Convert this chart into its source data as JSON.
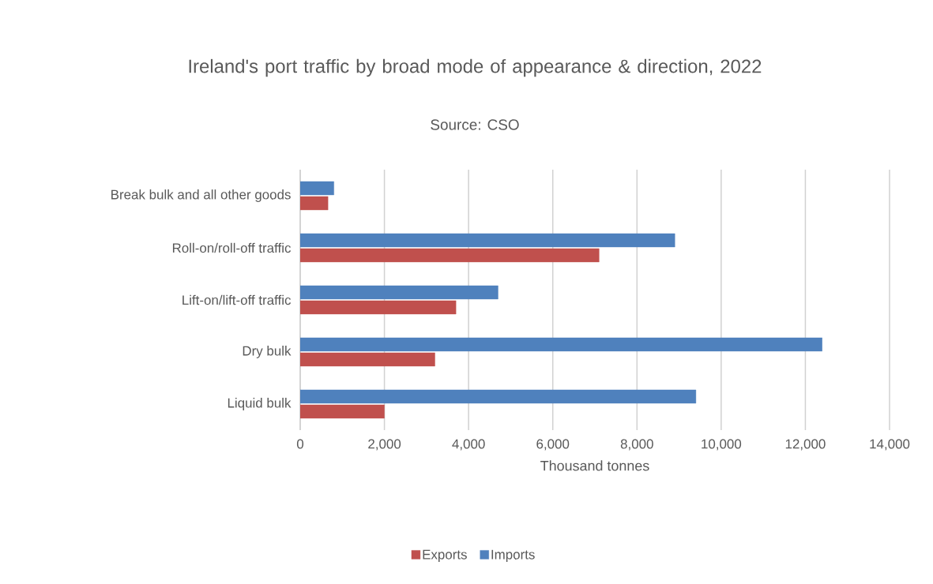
{
  "chart_data": {
    "type": "bar",
    "orientation": "horizontal",
    "title": "Ireland's port traffic by broad mode of appearance & direction, 2022",
    "subtitle": "Source:  CSO",
    "xlabel": "Thousand tonnes",
    "categories": [
      "Break bulk and all other goods",
      "Roll-on/roll-off traffic",
      "Lift-on/lift-off traffic",
      "Dry bulk",
      "Liquid bulk"
    ],
    "series": [
      {
        "name": "Exports",
        "color": "#c0504d",
        "values": [
          660,
          7100,
          3700,
          3200,
          2000
        ]
      },
      {
        "name": "Imports",
        "color": "#4f81bd",
        "values": [
          800,
          8900,
          4700,
          12400,
          9400
        ]
      }
    ],
    "xlim": [
      0,
      14000
    ],
    "xticks": [
      0,
      {
        "value": 2000,
        "label": "2,000"
      },
      {
        "value": 4000,
        "label": "4,000"
      },
      {
        "value": 6000,
        "label": "6,000"
      },
      {
        "value": 8000,
        "label": "8,000"
      },
      {
        "value": 10000,
        "label": "10,000"
      },
      {
        "value": 12000,
        "label": "12,000"
      },
      {
        "value": 14000,
        "label": "14,000"
      }
    ],
    "grid": "x",
    "legend": "bottom"
  }
}
